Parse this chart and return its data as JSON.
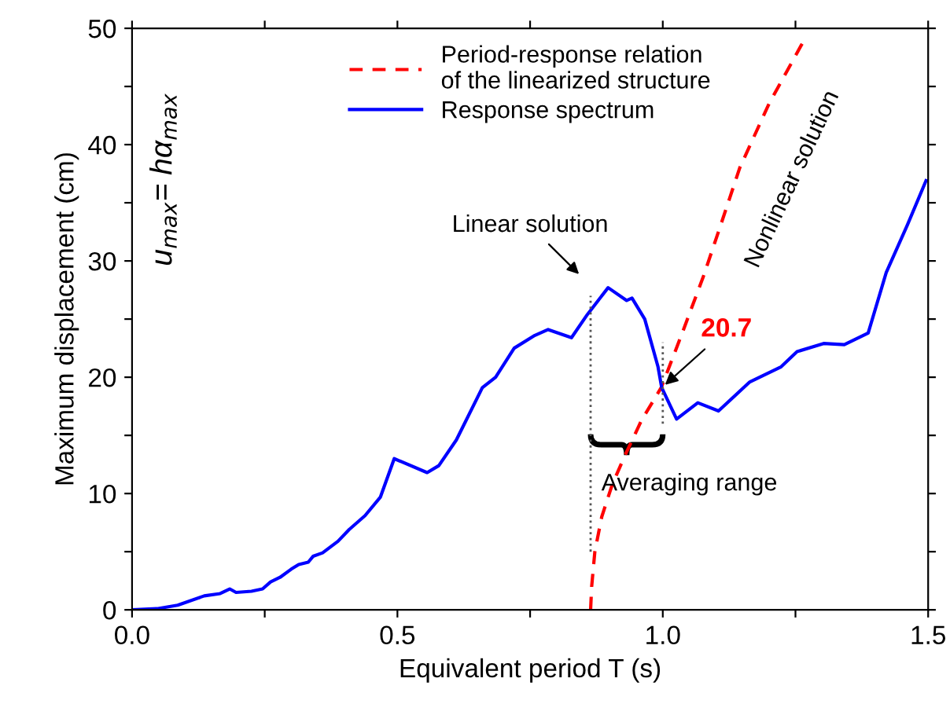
{
  "chart_data": {
    "type": "line",
    "xlabel": "Equivalent period T (s)",
    "ylabel": "Maximum displacement (cm)",
    "xlim": [
      0,
      1.5
    ],
    "ylim": [
      0,
      50
    ],
    "xticks": [
      {
        "value": 0,
        "label": "0.0"
      },
      {
        "value": 0.25,
        "label": null
      },
      {
        "value": 0.5,
        "label": "0.5"
      },
      {
        "value": 0.75,
        "label": null
      },
      {
        "value": 1.0,
        "label": "1.0"
      },
      {
        "value": 1.25,
        "label": null
      },
      {
        "value": 1.5,
        "label": "1.5"
      }
    ],
    "yticks": [
      0,
      {
        "value": 5,
        "label": null
      },
      10,
      {
        "value": 15,
        "label": null
      },
      20,
      {
        "value": 25,
        "label": null
      },
      30,
      {
        "value": 35,
        "label": null
      },
      40,
      {
        "value": 45,
        "label": null
      },
      50
    ],
    "grid": false,
    "legend": "top",
    "series": [
      {
        "name": "Period-response relation\nof the linearized structure",
        "color": "#ff0000",
        "line_style": "dashed",
        "x": [
          0.864,
          0.866,
          0.872,
          0.885,
          0.905,
          0.928,
          0.96,
          0.997,
          1.035,
          1.076,
          1.11,
          1.145,
          1.2,
          1.264
        ],
        "values": [
          0,
          2,
          5,
          8,
          10.8,
          13.2,
          16.3,
          19.1,
          23.6,
          28.6,
          33.2,
          38.0,
          43.5,
          48.8
        ]
      },
      {
        "name": "Response spectrum",
        "color": "#0000ff",
        "line_style": "solid",
        "x": [
          0,
          0.047,
          0.086,
          0.136,
          0.166,
          0.184,
          0.196,
          0.225,
          0.246,
          0.261,
          0.279,
          0.3,
          0.314,
          0.332,
          0.341,
          0.359,
          0.388,
          0.409,
          0.439,
          0.468,
          0.494,
          0.556,
          0.578,
          0.611,
          0.66,
          0.685,
          0.72,
          0.759,
          0.784,
          0.828,
          0.858,
          0.897,
          0.932,
          0.942,
          0.966,
          0.991,
          0.998,
          1.026,
          1.066,
          1.105,
          1.164,
          1.223,
          1.253,
          1.303,
          1.342,
          1.387,
          1.421,
          1.461,
          1.496
        ],
        "values": [
          0,
          0.1,
          0.4,
          1.2,
          1.4,
          1.8,
          1.5,
          1.6,
          1.8,
          2.4,
          2.8,
          3.5,
          3.9,
          4.1,
          4.6,
          4.9,
          5.9,
          6.9,
          8.1,
          9.7,
          13.0,
          11.8,
          12.4,
          14.6,
          19.1,
          20,
          22.5,
          23.6,
          24.1,
          23.4,
          25.4,
          27.7,
          26.6,
          26.8,
          25.0,
          20.9,
          19.1,
          16.4,
          17.8,
          17.1,
          19.6,
          20.9,
          22.2,
          22.9,
          22.8,
          23.8,
          29.0,
          33.1,
          36.9
        ]
      },
      {
        "color": "#555555",
        "line_style": "dotted",
        "x": [
          0.864,
          0.864
        ],
        "values": [
          5,
          27
        ]
      },
      {
        "color": "#555555",
        "line_style": "dotted",
        "x": [
          1.0,
          1.0
        ],
        "values": [
          16,
          23
        ]
      }
    ],
    "annotations": [
      "Linear solution",
      {
        "text": "20.7",
        "x": 0.998,
        "y": 19.1
      },
      "Nonlinear solution",
      "Averaging range",
      "u$_{max}$= hα$_{max}$"
    ]
  }
}
